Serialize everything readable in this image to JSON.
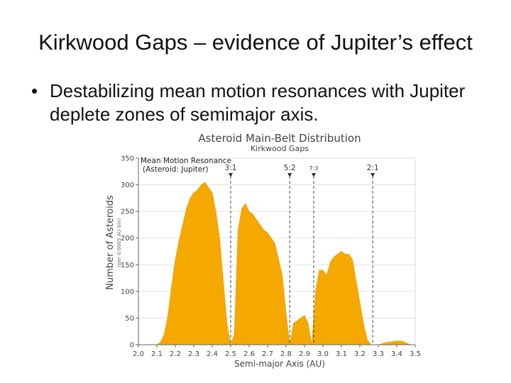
{
  "slide": {
    "title": "Kirkwood Gaps – evidence of Jupiter’s effect",
    "bullet": "Destabilizing mean motion resonances with Jupiter deplete zones of semimajor axis."
  },
  "colors": {
    "fill": "#f5a800",
    "axis": "#666666",
    "text": "#444444",
    "grid": "#d9d9d9"
  },
  "chart_data": {
    "type": "area",
    "title": "Asteroid Main-Belt Distribution",
    "subtitle": "Kirkwood Gaps",
    "xlabel": "Semi-major Axis (AU)",
    "ylabel": "Number of Asteroids",
    "ylabel_sub": "(per 0.0005 AU bin)",
    "xlim": [
      2.0,
      3.5
    ],
    "ylim": [
      0,
      350
    ],
    "x_ticks": [
      "2.0",
      "2.1",
      "2.2",
      "2.3",
      "2.4",
      "2.5",
      "2.6",
      "2.7",
      "2.8",
      "2.9",
      "3.0",
      "3.1",
      "3.2",
      "3.3",
      "3.4",
      "3.5"
    ],
    "y_ticks": [
      "0",
      "50",
      "100",
      "150",
      "200",
      "250",
      "300",
      "350"
    ],
    "legend_title": "Mean Motion Resonance",
    "legend_subtitle": "(Asteroid: Jupiter)",
    "resonances": [
      {
        "label": "3:1",
        "x": 2.5
      },
      {
        "label": "5:2",
        "x": 2.82
      },
      {
        "label": "7:3",
        "x": 2.95
      },
      {
        "label": "2:1",
        "x": 3.27
      }
    ],
    "x": [
      2.1,
      2.12,
      2.14,
      2.16,
      2.18,
      2.2,
      2.22,
      2.24,
      2.26,
      2.28,
      2.3,
      2.32,
      2.34,
      2.36,
      2.38,
      2.4,
      2.42,
      2.44,
      2.46,
      2.48,
      2.5,
      2.52,
      2.54,
      2.56,
      2.58,
      2.6,
      2.62,
      2.64,
      2.66,
      2.68,
      2.7,
      2.72,
      2.74,
      2.76,
      2.78,
      2.8,
      2.82,
      2.84,
      2.86,
      2.88,
      2.9,
      2.92,
      2.94,
      2.96,
      2.98,
      3.0,
      3.02,
      3.04,
      3.06,
      3.08,
      3.1,
      3.12,
      3.14,
      3.16,
      3.18,
      3.2,
      3.22,
      3.24,
      3.26,
      3.28,
      3.3,
      3.32,
      3.34,
      3.36,
      3.38,
      3.4,
      3.42,
      3.44,
      3.46,
      3.48
    ],
    "values": [
      0,
      5,
      20,
      55,
      110,
      160,
      195,
      225,
      255,
      275,
      285,
      290,
      300,
      305,
      295,
      285,
      250,
      200,
      120,
      40,
      0,
      20,
      215,
      255,
      265,
      250,
      245,
      235,
      225,
      215,
      210,
      200,
      190,
      160,
      130,
      60,
      0,
      40,
      45,
      50,
      55,
      40,
      0,
      100,
      140,
      140,
      130,
      155,
      165,
      170,
      175,
      170,
      170,
      160,
      120,
      80,
      40,
      10,
      0,
      0,
      0,
      2,
      4,
      5,
      6,
      7,
      7,
      5,
      2,
      0
    ]
  }
}
